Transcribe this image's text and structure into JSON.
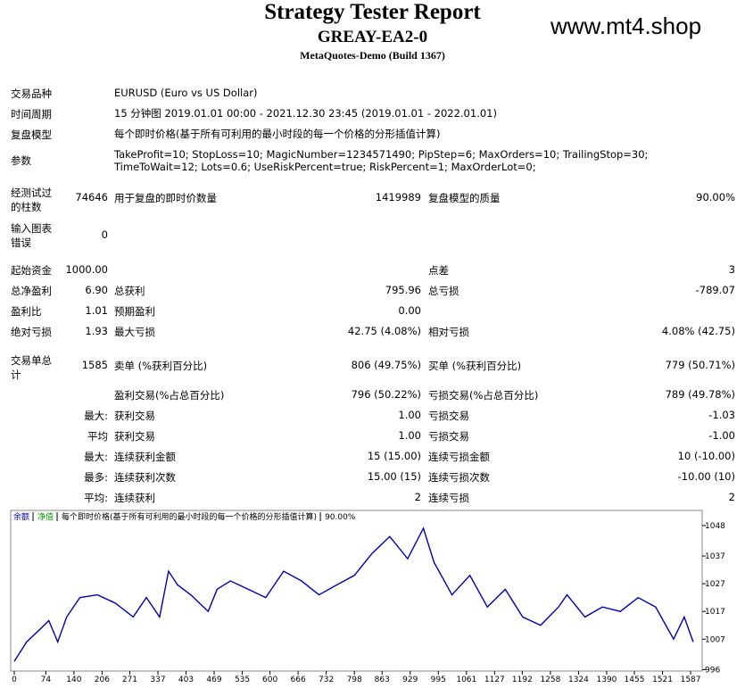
{
  "header": {
    "title": "Strategy Tester Report",
    "subtitle": "GREAY-EA2-0",
    "build": "MetaQuotes-Demo (Build 1367)",
    "watermark": "www.mt4.shop"
  },
  "info": [
    {
      "label": "交易品种",
      "value": "EURUSD (Euro vs US Dollar)"
    },
    {
      "label": "时间周期",
      "value": "15 分钟图 2019.01.01 00:00 - 2021.12.30 23:45 (2019.01.01 - 2022.01.01)"
    },
    {
      "label": "复盘模型",
      "value": "每个即时价格(基于所有可利用的最小时段的每一个价格的分形插值计算)"
    },
    {
      "label": "参数",
      "value": "TakeProfit=10; StopLoss=10; MagicNumber=1234571490; PipStep=6; MaxOrders=10; TrailingStop=30; TimeToWait=12; Lots=0.6; UseRiskPercent=true; RiskPercent=1; MaxOrderLot=0;"
    }
  ],
  "stats": [
    {
      "label1": "经测试过的柱数",
      "value1": "74646",
      "label2": "用于复盘的即时价数量",
      "value2": "1419989",
      "label3": "复盘模型的质量",
      "value3": "90.00%"
    },
    {
      "label1": "输入图表错误",
      "value1": "0"
    },
    {
      "label1": "起始资金",
      "value1": "1000.00",
      "label3": "点差",
      "value3": "3"
    },
    {
      "label1": "总净盈利",
      "value1": "6.90",
      "label2": "总获利",
      "value2": "795.96",
      "label3": "总亏损",
      "value3": "-789.07"
    },
    {
      "label1": "盈利比",
      "value1": "1.01",
      "label2": "预期盈利",
      "value2": "0.00"
    },
    {
      "label1": "绝对亏损",
      "value1": "1.93",
      "label2": "最大亏损",
      "value2": "42.75 (4.08%)",
      "label3": "相对亏损",
      "value3": "4.08% (42.75)"
    },
    {
      "label1": "交易单总计",
      "value1": "1585",
      "label2": "卖单 (%获利百分比)",
      "value2": "806 (49.75%)",
      "label3": "买单 (%获利百分比)",
      "value3": "779 (50.71%)"
    },
    {
      "label2": "盈利交易(%占总百分比)",
      "value2": "796 (50.22%)",
      "label3": "亏损交易(%占总百分比)",
      "value3": "789 (49.78%)"
    },
    {
      "value1": "最大:",
      "label2": "获利交易",
      "value2": "1.00",
      "label3": "亏损交易",
      "value3": "-1.03"
    },
    {
      "value1": "平均",
      "label2": "获利交易",
      "value2": "1.00",
      "label3": "亏损交易",
      "value3": "-1.00"
    },
    {
      "value1": "最大:",
      "label2": "连续获利金额",
      "value2": "15 (15.00)",
      "label3": "连续亏损金额",
      "value3": "10 (-10.00)"
    },
    {
      "value1": "最多:",
      "label2": "连续获利次数",
      "value2": "15.00 (15)",
      "label3": "连续亏损次数",
      "value3": "-10.00 (10)"
    },
    {
      "value1": "平均:",
      "label2": "连续获利",
      "value2": "2",
      "label3": "连续亏损",
      "value3": "2"
    }
  ],
  "chart_data": {
    "type": "line",
    "legend": [
      {
        "name": "余额",
        "color": "#0000b0"
      },
      {
        "name": "净值",
        "color": "#00a000"
      }
    ],
    "subtitle": "每个即时价格(基于所有可利用的最小时段的每一个价格的分形插值计算)",
    "quality": "90.00%",
    "x": [
      0,
      29,
      60,
      81,
      102,
      123,
      154,
      195,
      237,
      279,
      310,
      341,
      362,
      383,
      414,
      455,
      476,
      507,
      549,
      590,
      632,
      674,
      715,
      757,
      798,
      840,
      881,
      923,
      960,
      985,
      1027,
      1069,
      1110,
      1152,
      1193,
      1235,
      1277,
      1297,
      1339,
      1380,
      1422,
      1464,
      1505,
      1547,
      1572,
      1593
    ],
    "series": [
      {
        "name": "余额",
        "color": "#0000b0",
        "values": [
          999,
          1006,
          1010.5,
          1013.7,
          1006,
          1015,
          1022,
          1023,
          1020,
          1015,
          1022,
          1015,
          1031.5,
          1026.6,
          1023,
          1017,
          1025,
          1028,
          1025,
          1022,
          1031.5,
          1028,
          1023,
          1026.6,
          1030,
          1038,
          1044,
          1036,
          1047,
          1034.7,
          1023,
          1030,
          1018.6,
          1025,
          1015,
          1012,
          1018.6,
          1023,
          1015,
          1018.6,
          1017,
          1022,
          1018.6,
          1007,
          1015,
          1006
        ]
      }
    ],
    "xlim": [
      0,
      1612
    ],
    "ylim": [
      995.5,
      1051.5
    ],
    "xticks": [
      0,
      74,
      140,
      206,
      271,
      337,
      403,
      469,
      535,
      600,
      666,
      732,
      798,
      863,
      929,
      995,
      1061,
      1127,
      1192,
      1258,
      1324,
      1390,
      1455,
      1521,
      1587
    ],
    "yticks": [
      996,
      1007,
      1017,
      1027,
      1037,
      1048
    ]
  }
}
